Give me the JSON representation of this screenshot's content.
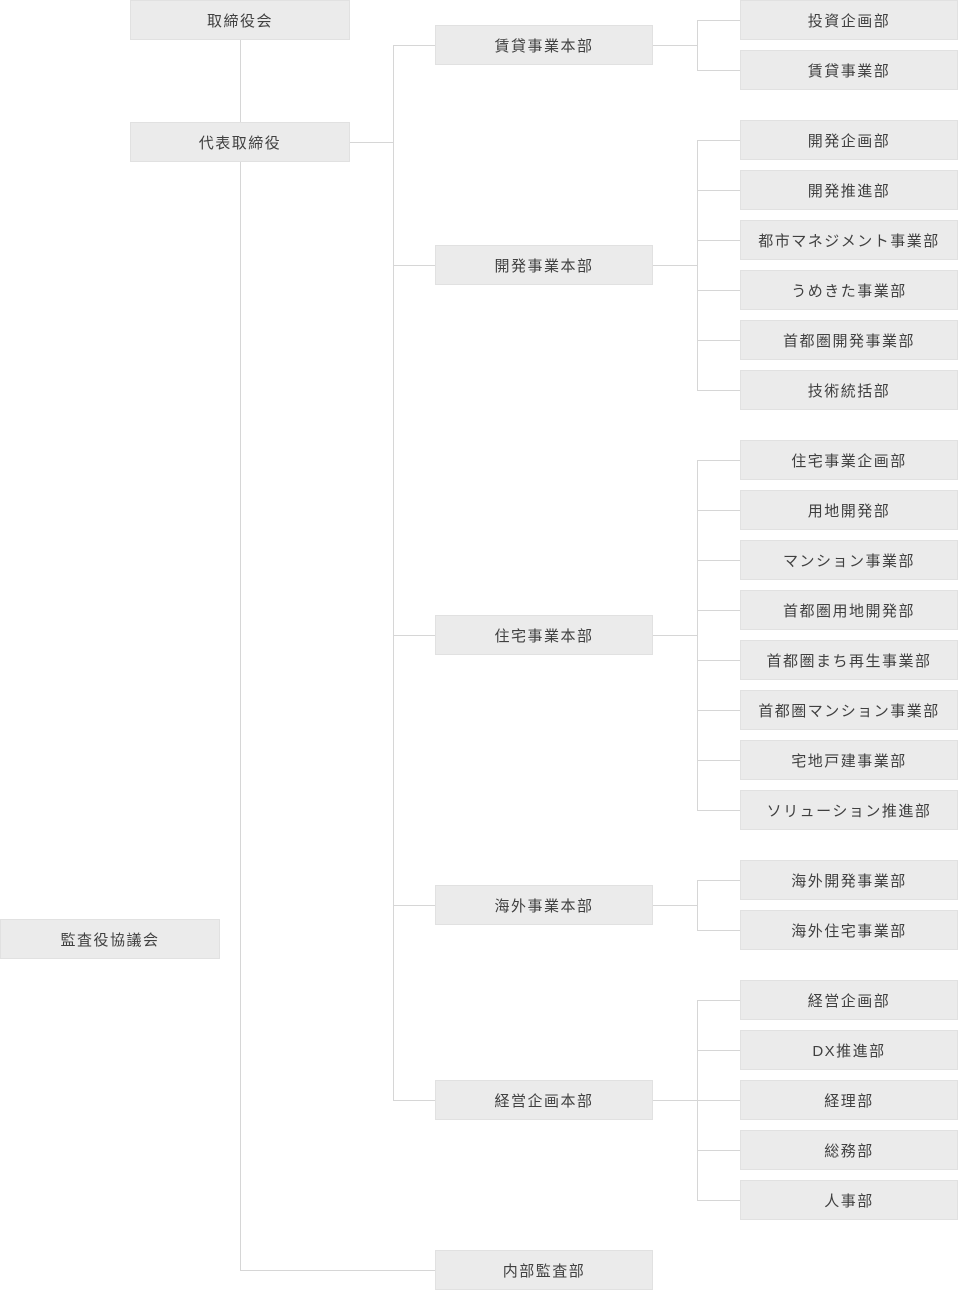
{
  "chart": {
    "type": "org-chart",
    "colors": {
      "box_fill": "#ebebeb",
      "box_border": "#e1e1e1",
      "line": "#d6d6d6",
      "text": "#404040"
    },
    "board": {
      "label": "取締役会"
    },
    "ceo": {
      "label": "代表取締役"
    },
    "audit_council": {
      "label": "監査役協議会"
    },
    "internal_audit": {
      "label": "内部監査部"
    },
    "divisions": [
      {
        "label": "賃貸事業本部",
        "departments": [
          {
            "label": "投資企画部"
          },
          {
            "label": "賃貸事業部"
          }
        ]
      },
      {
        "label": "開発事業本部",
        "departments": [
          {
            "label": "開発企画部"
          },
          {
            "label": "開発推進部"
          },
          {
            "label": "都市マネジメント事業部"
          },
          {
            "label": "うめきた事業部"
          },
          {
            "label": "首都圏開発事業部"
          },
          {
            "label": "技術統括部"
          }
        ]
      },
      {
        "label": "住宅事業本部",
        "departments": [
          {
            "label": "住宅事業企画部"
          },
          {
            "label": "用地開発部"
          },
          {
            "label": "マンション事業部"
          },
          {
            "label": "首都圏用地開発部"
          },
          {
            "label": "首都圏まち再生事業部"
          },
          {
            "label": "首都圏マンション事業部"
          },
          {
            "label": "宅地戸建事業部"
          },
          {
            "label": "ソリューション推進部"
          }
        ]
      },
      {
        "label": "海外事業本部",
        "departments": [
          {
            "label": "海外開発事業部"
          },
          {
            "label": "海外住宅事業部"
          }
        ]
      },
      {
        "label": "経営企画本部",
        "departments": [
          {
            "label": "経営企画部"
          },
          {
            "label": "DX推進部"
          },
          {
            "label": "経理部"
          },
          {
            "label": "総務部"
          },
          {
            "label": "人事部"
          }
        ]
      }
    ]
  }
}
